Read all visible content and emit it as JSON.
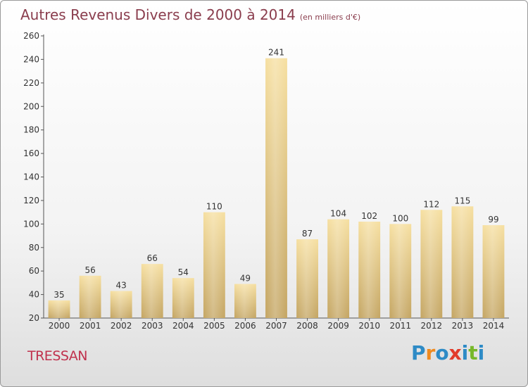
{
  "header": {
    "title": "Autres Revenus Divers de 2000 à 2014",
    "subtitle": "(en milliers d'€)"
  },
  "footer": {
    "commune": "TRESSAN",
    "logo": [
      "P",
      "r",
      "o",
      "x",
      "i",
      "t",
      "i"
    ],
    "logo_colors": [
      "#2e8bc6",
      "#ef8a1f",
      "#2e8bc6",
      "#e23b2a",
      "#2e8bc6",
      "#77b82a",
      "#2e8bc6"
    ]
  },
  "colors": {
    "bar_light": "#f6dfa0",
    "bar_dark": "#c4a562",
    "title": "#8a3d4d",
    "commune": "#c0314d"
  },
  "chart_data": {
    "type": "bar",
    "title": "Autres Revenus Divers de 2000 à 2014",
    "subtitle": "(en milliers d'€)",
    "categories": [
      "2000",
      "2001",
      "2002",
      "2003",
      "2004",
      "2005",
      "2006",
      "2007",
      "2008",
      "2009",
      "2010",
      "2011",
      "2012",
      "2013",
      "2014"
    ],
    "values": [
      35,
      56,
      43,
      66,
      54,
      110,
      49,
      241,
      87,
      104,
      102,
      100,
      112,
      115,
      99
    ],
    "ylim": [
      20,
      260
    ],
    "yticks": [
      20,
      40,
      60,
      80,
      100,
      120,
      140,
      160,
      180,
      200,
      220,
      240,
      260
    ],
    "grid": false,
    "legend": "none"
  }
}
